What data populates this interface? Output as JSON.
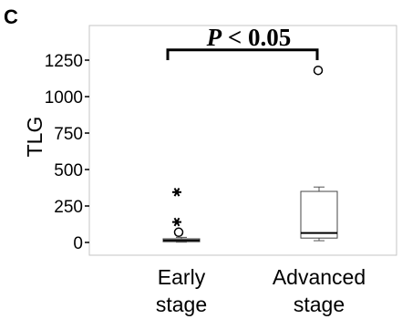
{
  "chart_data": {
    "type": "box",
    "panel_label": "C",
    "ylabel": "TLG",
    "ylim": [
      -30,
      1450
    ],
    "yticks": [
      {
        "value": 0,
        "label": "0"
      },
      {
        "value": 250,
        "label": "250"
      },
      {
        "value": 500,
        "label": "500"
      },
      {
        "value": 750,
        "label": "750"
      },
      {
        "value": 1000,
        "label": "1000"
      },
      {
        "value": 1250,
        "label": "1250"
      }
    ],
    "categories": [
      {
        "line1": "Early",
        "line2": "stage"
      },
      {
        "line1": "Advanced",
        "line2": "stage"
      }
    ],
    "boxes": [
      {
        "category": "Early stage",
        "whisker_low": 2,
        "q1": 5,
        "median": 14,
        "q3": 25,
        "whisker_high": 35,
        "outliers": [
          70
        ],
        "extremes": [
          140,
          345
        ]
      },
      {
        "category": "Advanced stage",
        "whisker_low": 12,
        "q1": 30,
        "median": 65,
        "q3": 350,
        "whisker_high": 380,
        "outliers": [
          1180
        ],
        "extremes": []
      }
    ],
    "significance": {
      "p_symbol": "P",
      "p_text": " < 0.05",
      "bar_value": 1320,
      "tick_drop_value": 1250
    },
    "grid": false,
    "legend": "none"
  }
}
